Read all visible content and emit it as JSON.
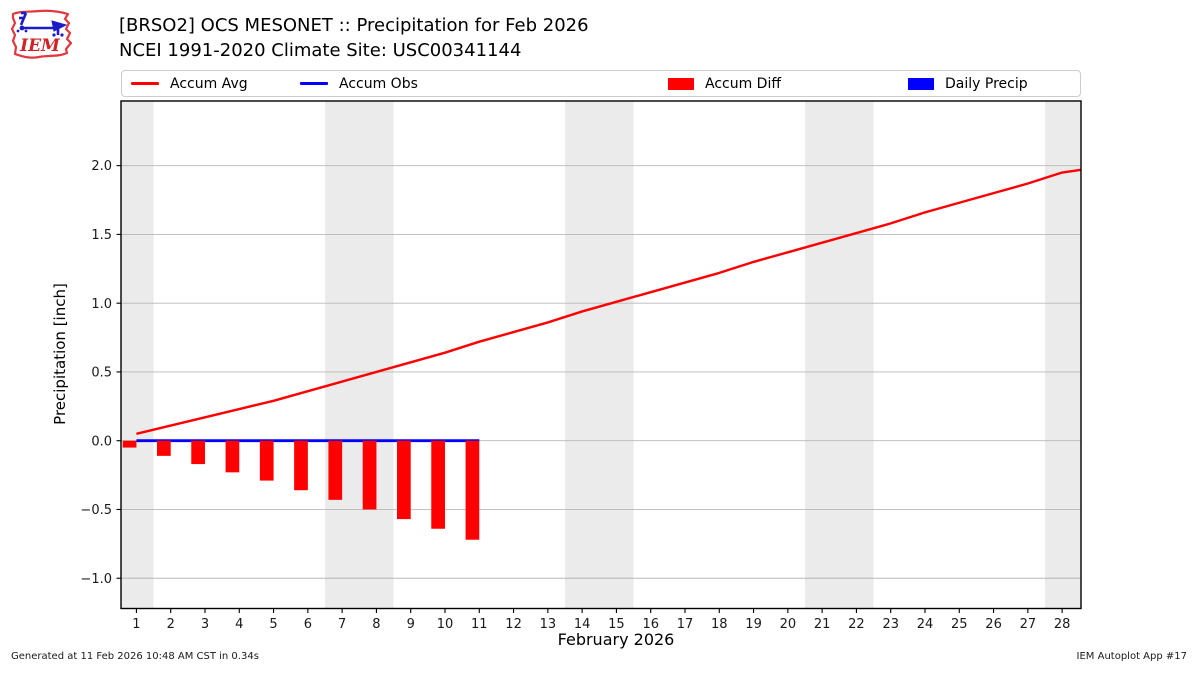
{
  "header": {
    "title_line1": "[BRSO2] OCS MESONET :: Precipitation for Feb 2026",
    "title_line2": "NCEI 1991-2020 Climate Site: USC00341144",
    "logo_text": "IEM"
  },
  "legend": {
    "items": [
      {
        "label": "Accum Avg",
        "type": "line",
        "color": "#ff0000"
      },
      {
        "label": "Accum Obs",
        "type": "line",
        "color": "#0000ff"
      },
      {
        "label": "Accum Diff",
        "type": "patch",
        "color": "#ff0000"
      },
      {
        "label": "Daily Precip",
        "type": "patch",
        "color": "#0000ff"
      }
    ]
  },
  "footer": {
    "left": "Generated at 11 Feb 2026 10:48 AM CST in 0.34s",
    "right": "IEM Autoplot App #17"
  },
  "colors": {
    "accum_avg": "#ff0000",
    "accum_obs": "#0000ff",
    "accum_diff": "#ff0000",
    "daily_precip": "#0000ff",
    "weekend_band": "#ebebeb",
    "gridline": "#b8b8b8",
    "frame": "#000000"
  },
  "chart_data": {
    "type": "line+bar",
    "title": "",
    "xlabel": "February 2026",
    "ylabel": "Precipitation [inch]",
    "xlim": [
      0.55,
      28.55
    ],
    "ylim": [
      -1.22,
      2.47
    ],
    "grid": true,
    "legend_position": "top",
    "x_ticks": [
      1,
      2,
      3,
      4,
      5,
      6,
      7,
      8,
      9,
      10,
      11,
      12,
      13,
      14,
      15,
      16,
      17,
      18,
      19,
      20,
      21,
      22,
      23,
      24,
      25,
      26,
      27,
      28
    ],
    "y_ticks": [
      -1.0,
      -0.5,
      0.0,
      0.5,
      1.0,
      1.5,
      2.0
    ],
    "weekend_bands": [
      [
        0.55,
        1.5
      ],
      [
        6.5,
        8.5
      ],
      [
        13.5,
        15.5
      ],
      [
        20.5,
        22.5
      ],
      [
        27.5,
        28.55
      ]
    ],
    "series": [
      {
        "name": "Accum Avg",
        "type": "line",
        "color": "#ff0000",
        "x": [
          1,
          2,
          3,
          4,
          5,
          6,
          7,
          8,
          9,
          10,
          11,
          12,
          13,
          14,
          15,
          16,
          17,
          18,
          19,
          20,
          21,
          22,
          23,
          24,
          25,
          26,
          27,
          28
        ],
        "values": [
          0.05,
          0.11,
          0.17,
          0.23,
          0.29,
          0.36,
          0.43,
          0.5,
          0.57,
          0.64,
          0.72,
          0.79,
          0.86,
          0.94,
          1.01,
          1.08,
          1.15,
          1.22,
          1.3,
          1.37,
          1.44,
          1.51,
          1.58,
          1.66,
          1.73,
          1.8,
          1.87,
          1.95
        ],
        "extend": {
          "x": 28.55,
          "value": 1.97
        }
      },
      {
        "name": "Accum Obs",
        "type": "line",
        "color": "#0000ff",
        "x": [
          1,
          2,
          3,
          4,
          5,
          6,
          7,
          8,
          9,
          10,
          11
        ],
        "values": [
          0.0,
          0.0,
          0.0,
          0.0,
          0.0,
          0.0,
          0.0,
          0.0,
          0.0,
          0.0,
          0.0
        ]
      },
      {
        "name": "Accum Diff",
        "type": "bar",
        "color": "#ff0000",
        "bar_width": 0.4,
        "bar_align": "right",
        "x": [
          1,
          2,
          3,
          4,
          5,
          6,
          7,
          8,
          9,
          10,
          11
        ],
        "values": [
          -0.05,
          -0.11,
          -0.17,
          -0.23,
          -0.29,
          -0.36,
          -0.43,
          -0.5,
          -0.57,
          -0.64,
          -0.72
        ]
      },
      {
        "name": "Daily Precip",
        "type": "bar",
        "color": "#0000ff",
        "bar_width": 0.4,
        "bar_align": "right",
        "x": [
          1,
          2,
          3,
          4,
          5,
          6,
          7,
          8,
          9,
          10,
          11
        ],
        "values": [
          0.0,
          0.0,
          0.0,
          0.0,
          0.0,
          0.0,
          0.0,
          0.0,
          0.0,
          0.0,
          0.0
        ]
      }
    ]
  }
}
